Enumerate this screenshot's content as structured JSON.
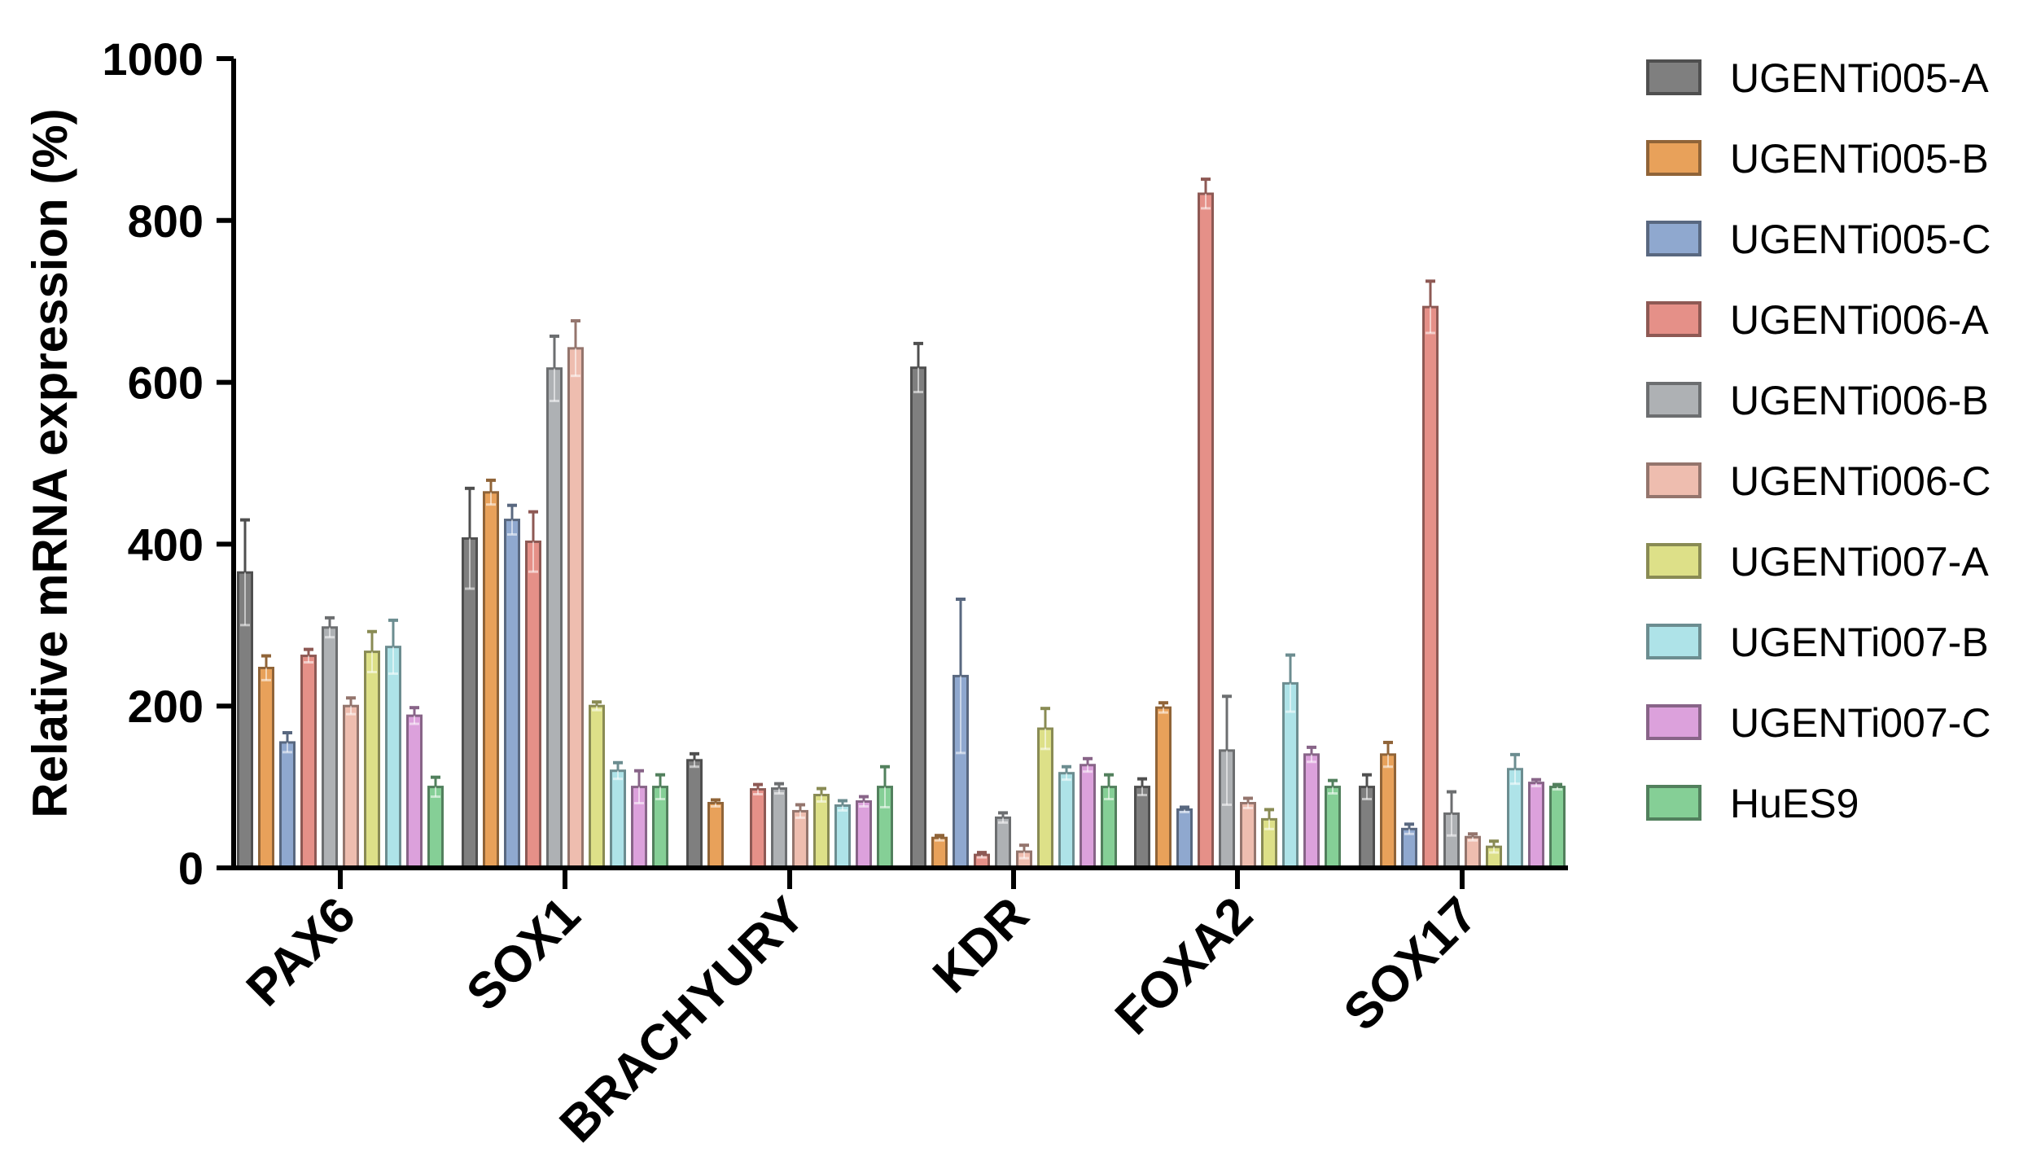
{
  "chart_data": {
    "type": "bar",
    "ylabel": "Relative mRNA expression (%)",
    "ylim": [
      0,
      1000
    ],
    "yticks": [
      0,
      200,
      400,
      600,
      800,
      1000
    ],
    "categories": [
      "PAX6",
      "SOX1",
      "BRACHYURY",
      "KDR",
      "FOXA2",
      "SOX17"
    ],
    "legend_position": "right",
    "error_bars": true,
    "series": [
      {
        "name": "UGENTi005-A",
        "color": "#7f7f7f",
        "values": [
          365,
          407,
          133,
          618,
          100,
          100
        ],
        "errors": [
          65,
          62,
          8,
          30,
          10,
          15
        ]
      },
      {
        "name": "UGENTi005-B",
        "color": "#e8a15a",
        "values": [
          247,
          464,
          80,
          37,
          198,
          140
        ],
        "errors": [
          15,
          15,
          4,
          3,
          6,
          15
        ]
      },
      {
        "name": "UGENTi005-C",
        "color": "#8fa8cf",
        "values": [
          155,
          430,
          null,
          237,
          72,
          48
        ],
        "errors": [
          12,
          18,
          null,
          95,
          3,
          6
        ]
      },
      {
        "name": "UGENTi006-A",
        "color": "#e59088",
        "values": [
          262,
          403,
          97,
          16,
          833,
          693
        ],
        "errors": [
          8,
          37,
          6,
          3,
          18,
          32
        ]
      },
      {
        "name": "UGENTi006-B",
        "color": "#aeb1b4",
        "values": [
          297,
          617,
          98,
          62,
          145,
          67
        ],
        "errors": [
          12,
          40,
          6,
          6,
          67,
          27
        ]
      },
      {
        "name": "UGENTi006-C",
        "color": "#eebdaf",
        "values": [
          200,
          642,
          70,
          20,
          80,
          38
        ],
        "errors": [
          10,
          34,
          8,
          8,
          6,
          4
        ]
      },
      {
        "name": "UGENTi007-A",
        "color": "#dde088",
        "values": [
          267,
          200,
          90,
          172,
          60,
          26
        ],
        "errors": [
          25,
          5,
          8,
          25,
          12,
          7
        ]
      },
      {
        "name": "UGENTi007-B",
        "color": "#aee3e8",
        "values": [
          273,
          120,
          77,
          117,
          228,
          122
        ],
        "errors": [
          33,
          10,
          6,
          8,
          35,
          18
        ]
      },
      {
        "name": "UGENTi007-C",
        "color": "#dca1dc",
        "values": [
          188,
          100,
          82,
          127,
          140,
          105
        ],
        "errors": [
          10,
          20,
          6,
          8,
          9,
          4
        ]
      },
      {
        "name": "HuES9",
        "color": "#85cf96",
        "values": [
          100,
          100,
          100,
          100,
          100,
          100
        ],
        "errors": [
          12,
          15,
          25,
          15,
          8,
          3
        ]
      }
    ]
  }
}
